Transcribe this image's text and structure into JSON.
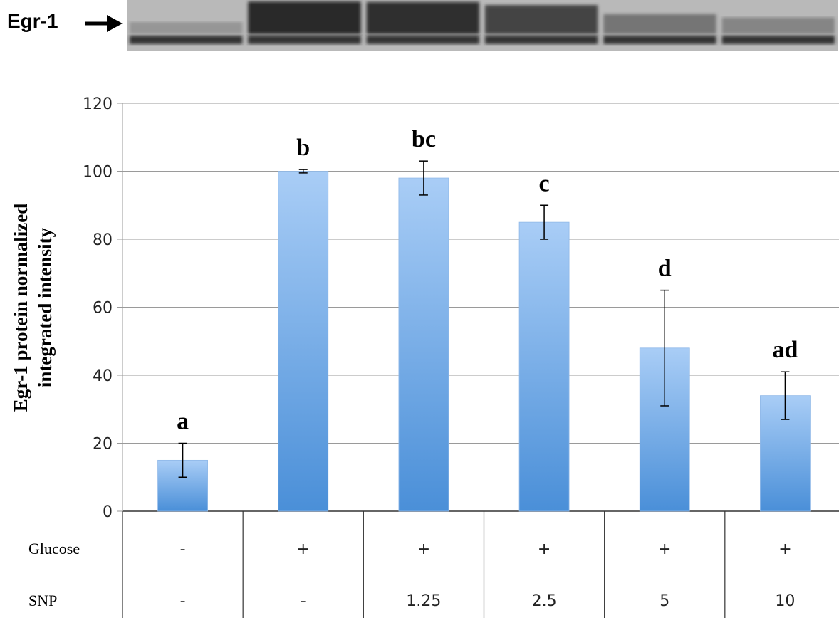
{
  "blot": {
    "label": "Egr-1",
    "lanes": [
      {
        "band_strength": 0.15
      },
      {
        "band_strength": 1.0
      },
      {
        "band_strength": 0.98
      },
      {
        "band_strength": 0.85
      },
      {
        "band_strength": 0.48
      },
      {
        "band_strength": 0.34
      }
    ]
  },
  "chart_data": {
    "type": "bar",
    "ylabel_lines": [
      "Egr-1 protein normalized",
      "integrated intensity"
    ],
    "ylim": [
      0,
      120
    ],
    "yticks": [
      "0",
      "20",
      "40",
      "60",
      "80",
      "100",
      "120"
    ],
    "grid": true,
    "values": [
      15,
      100,
      98,
      85,
      48,
      34
    ],
    "error": [
      5,
      0.5,
      5,
      5,
      17,
      7
    ],
    "significance": [
      "a",
      "b",
      "bc",
      "c",
      "d",
      "ad"
    ],
    "table_rows": [
      {
        "label": "Glucose",
        "cells": [
          "-",
          "+",
          "+",
          "+",
          "+",
          "+"
        ]
      },
      {
        "label": "SNP",
        "cells": [
          "-",
          "-",
          "1.25",
          "2.5",
          "5",
          "10"
        ]
      }
    ],
    "colors": {
      "bar_top": "#a9cdf6",
      "bar_bottom": "#4a8fd8",
      "grid": "#9a9a9a",
      "axis": "#333333"
    }
  }
}
